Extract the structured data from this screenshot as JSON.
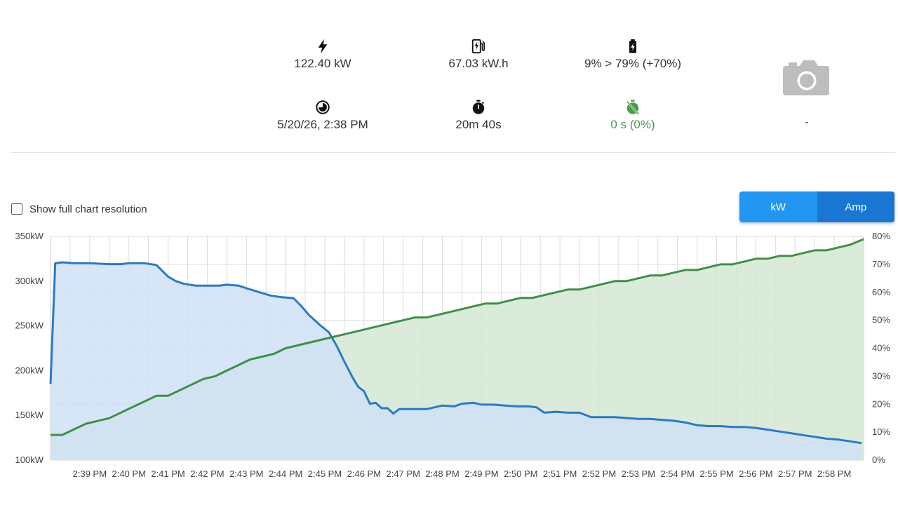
{
  "stats": {
    "power": {
      "icon": "lightning-bolt-icon",
      "value": "122.40 kW"
    },
    "energy": {
      "icon": "ev-charger-icon",
      "value": "67.03 kW.h"
    },
    "soc": {
      "icon": "battery-charging-icon",
      "value": "9% > 79% (+70%)"
    },
    "start_time": {
      "icon": "clock-pie-icon",
      "value": "5/20/26, 2:38 PM"
    },
    "duration": {
      "icon": "stopwatch-icon",
      "value": "20m 40s"
    },
    "idle": {
      "icon": "timer-off-icon",
      "value": "0 s (0%)",
      "color": "#43a047"
    }
  },
  "camera": {
    "icon": "camera-icon",
    "caption": "-"
  },
  "controls": {
    "full_resolution_label": "Show full chart resolution",
    "full_resolution_checked": false,
    "toggle": {
      "kw_label": "kW",
      "amp_label": "Amp",
      "selected": "kW"
    }
  },
  "chart_data": {
    "type": "area",
    "x_ticks": [
      "2:39 PM",
      "2:40 PM",
      "2:41 PM",
      "2:42 PM",
      "2:43 PM",
      "2:44 PM",
      "2:45 PM",
      "2:46 PM",
      "2:47 PM",
      "2:48 PM",
      "2:49 PM",
      "2:50 PM",
      "2:51 PM",
      "2:52 PM",
      "2:53 PM",
      "2:54 PM",
      "2:55 PM",
      "2:56 PM",
      "2:57 PM",
      "2:58 PM"
    ],
    "y_left": {
      "ticks": [
        "100kW",
        "150kW",
        "200kW",
        "250kW",
        "300kW",
        "350kW"
      ],
      "range": [
        100,
        350
      ]
    },
    "y_right": {
      "ticks": [
        "0%",
        "10%",
        "20%",
        "30%",
        "40%",
        "50%",
        "60%",
        "70%",
        "80%"
      ],
      "range": [
        0,
        80
      ]
    },
    "grid": true,
    "x_range": [
      38.0,
      58.75
    ],
    "series": [
      {
        "color": "#2a7ac9",
        "fill": "#cfe2f5",
        "axis": "left",
        "points": [
          [
            38.0,
            185
          ],
          [
            38.12,
            320
          ],
          [
            38.3,
            321
          ],
          [
            38.6,
            320
          ],
          [
            39.0,
            320
          ],
          [
            39.5,
            319
          ],
          [
            39.8,
            319
          ],
          [
            40.0,
            320
          ],
          [
            40.4,
            320
          ],
          [
            40.7,
            318
          ],
          [
            41.0,
            305
          ],
          [
            41.2,
            300
          ],
          [
            41.4,
            297
          ],
          [
            41.7,
            295
          ],
          [
            42.0,
            295
          ],
          [
            42.3,
            295
          ],
          [
            42.5,
            296
          ],
          [
            42.8,
            295
          ],
          [
            43.0,
            292
          ],
          [
            43.3,
            288
          ],
          [
            43.6,
            284
          ],
          [
            43.9,
            282
          ],
          [
            44.2,
            281
          ],
          [
            44.4,
            272
          ],
          [
            44.6,
            262
          ],
          [
            44.9,
            250
          ],
          [
            45.1,
            243
          ],
          [
            45.3,
            228
          ],
          [
            45.5,
            210
          ],
          [
            45.7,
            193
          ],
          [
            45.85,
            182
          ],
          [
            46.0,
            177
          ],
          [
            46.15,
            163
          ],
          [
            46.3,
            164
          ],
          [
            46.45,
            158
          ],
          [
            46.6,
            158
          ],
          [
            46.75,
            152
          ],
          [
            46.9,
            157
          ],
          [
            47.2,
            157
          ],
          [
            47.6,
            157
          ],
          [
            47.8,
            159
          ],
          [
            48.0,
            161
          ],
          [
            48.3,
            160
          ],
          [
            48.5,
            163
          ],
          [
            48.8,
            164
          ],
          [
            49.0,
            162
          ],
          [
            49.3,
            162
          ],
          [
            49.6,
            161
          ],
          [
            49.9,
            160
          ],
          [
            50.2,
            160
          ],
          [
            50.4,
            159
          ],
          [
            50.6,
            153
          ],
          [
            50.9,
            154
          ],
          [
            51.2,
            153
          ],
          [
            51.5,
            153
          ],
          [
            51.8,
            148
          ],
          [
            52.1,
            148
          ],
          [
            52.4,
            148
          ],
          [
            52.7,
            147
          ],
          [
            53.0,
            146
          ],
          [
            53.3,
            146
          ],
          [
            53.6,
            145
          ],
          [
            53.9,
            144
          ],
          [
            54.2,
            142
          ],
          [
            54.5,
            139
          ],
          [
            54.8,
            138
          ],
          [
            55.1,
            138
          ],
          [
            55.4,
            137
          ],
          [
            55.7,
            137
          ],
          [
            56.0,
            136
          ],
          [
            56.3,
            134
          ],
          [
            56.6,
            132
          ],
          [
            56.9,
            130
          ],
          [
            57.2,
            128
          ],
          [
            57.5,
            126
          ],
          [
            57.8,
            124
          ],
          [
            58.1,
            123
          ],
          [
            58.4,
            121
          ],
          [
            58.7,
            119
          ]
        ]
      },
      {
        "color": "#3f8f4a",
        "fill": "#d5e8d2",
        "axis": "right",
        "points": [
          [
            38.0,
            9
          ],
          [
            38.3,
            9
          ],
          [
            38.6,
            11
          ],
          [
            38.9,
            13
          ],
          [
            39.2,
            14
          ],
          [
            39.5,
            15
          ],
          [
            39.8,
            17
          ],
          [
            40.1,
            19
          ],
          [
            40.4,
            21
          ],
          [
            40.7,
            23
          ],
          [
            41.0,
            23
          ],
          [
            41.3,
            25
          ],
          [
            41.6,
            27
          ],
          [
            41.9,
            29
          ],
          [
            42.2,
            30
          ],
          [
            42.5,
            32
          ],
          [
            42.8,
            34
          ],
          [
            43.1,
            36
          ],
          [
            43.4,
            37
          ],
          [
            43.7,
            38
          ],
          [
            44.0,
            40
          ],
          [
            44.3,
            41
          ],
          [
            44.6,
            42
          ],
          [
            44.9,
            43
          ],
          [
            45.2,
            44
          ],
          [
            45.5,
            45
          ],
          [
            45.8,
            46
          ],
          [
            46.1,
            47
          ],
          [
            46.4,
            48
          ],
          [
            46.7,
            49
          ],
          [
            47.0,
            50
          ],
          [
            47.3,
            51
          ],
          [
            47.6,
            51
          ],
          [
            47.9,
            52
          ],
          [
            48.2,
            53
          ],
          [
            48.5,
            54
          ],
          [
            48.8,
            55
          ],
          [
            49.1,
            56
          ],
          [
            49.4,
            56
          ],
          [
            49.7,
            57
          ],
          [
            50.0,
            58
          ],
          [
            50.3,
            58
          ],
          [
            50.6,
            59
          ],
          [
            50.9,
            60
          ],
          [
            51.2,
            61
          ],
          [
            51.5,
            61
          ],
          [
            51.8,
            62
          ],
          [
            52.1,
            63
          ],
          [
            52.4,
            64
          ],
          [
            52.7,
            64
          ],
          [
            53.0,
            65
          ],
          [
            53.3,
            66
          ],
          [
            53.6,
            66
          ],
          [
            53.9,
            67
          ],
          [
            54.2,
            68
          ],
          [
            54.5,
            68
          ],
          [
            54.8,
            69
          ],
          [
            55.1,
            70
          ],
          [
            55.4,
            70
          ],
          [
            55.7,
            71
          ],
          [
            56.0,
            72
          ],
          [
            56.3,
            72
          ],
          [
            56.6,
            73
          ],
          [
            56.9,
            73
          ],
          [
            57.2,
            74
          ],
          [
            57.5,
            75
          ],
          [
            57.8,
            75
          ],
          [
            58.1,
            76
          ],
          [
            58.4,
            77
          ],
          [
            58.75,
            79
          ]
        ]
      }
    ]
  }
}
